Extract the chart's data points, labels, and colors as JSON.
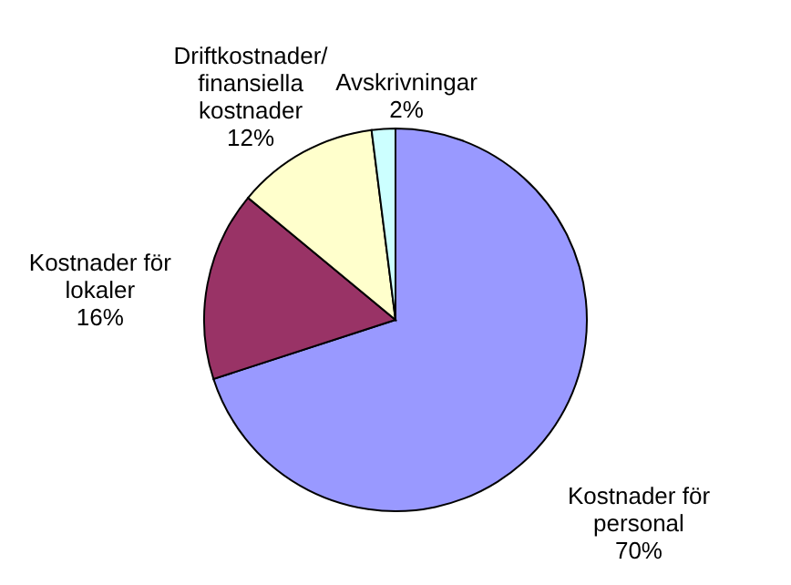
{
  "chart_data": {
    "type": "pie",
    "categories": [
      "Kostnader för personal",
      "Kostnader för lokaler",
      "Driftkostnader/ finansiella kostnader",
      "Avskrivningar"
    ],
    "values": [
      70,
      16,
      12,
      2
    ],
    "colors": [
      "#9999ff",
      "#993366",
      "#ffffcc",
      "#ccffff"
    ],
    "value_labels": [
      "70%",
      "16%",
      "12%",
      "2%"
    ],
    "legend": false
  }
}
